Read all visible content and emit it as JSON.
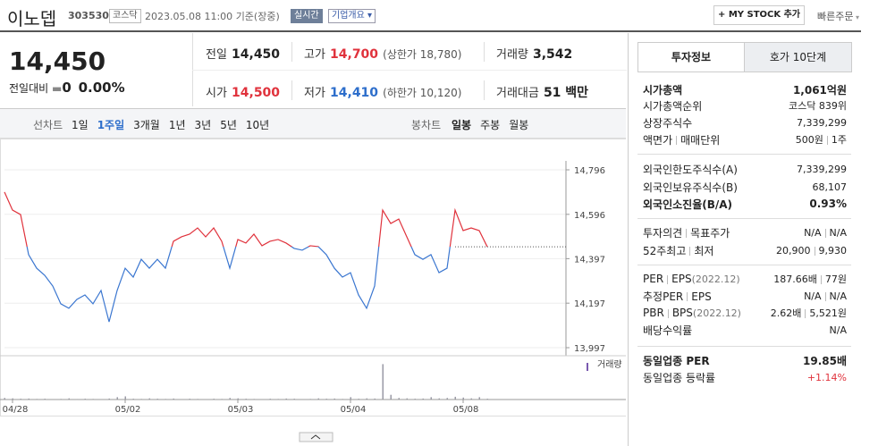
{
  "header": {
    "name": "이노뎁",
    "code": "303530",
    "market": "코스닥",
    "datetime": "2023.05.08 11:00",
    "status": "기준(장중)",
    "badge_live": "실시간",
    "badge_info": "기업개요",
    "mystock": "+ MY STOCK 추가",
    "quick_order": "빠른주문"
  },
  "price": {
    "current": "14,450",
    "change_label": "전일대비",
    "change": "0",
    "rate": "0.00%"
  },
  "summary": {
    "prev_label": "전일",
    "prev": "14,450",
    "high_label": "고가",
    "high": "14,700",
    "upper": "(상한가 18,780)",
    "volume_label": "거래량",
    "volume": "3,542",
    "open_label": "시가",
    "open": "14,500",
    "low_label": "저가",
    "low": "14,410",
    "lower": "(하한가 10,120)",
    "amount_label": "거래대금",
    "amount": "51 백만"
  },
  "tabs": {
    "line_label": "선차트",
    "line": [
      "1일",
      "1주일",
      "3개월",
      "1년",
      "3년",
      "5년",
      "10년"
    ],
    "line_selected": 1,
    "candle_label": "봉차트",
    "candle": [
      "일봉",
      "주봉",
      "월봉"
    ]
  },
  "chart_data": {
    "type": "line",
    "categories": [
      null,
      "04/28",
      null,
      null,
      null,
      null,
      null,
      null,
      null,
      null,
      null,
      null,
      null,
      null,
      null,
      "05/02",
      null,
      null,
      null,
      null,
      null,
      null,
      null,
      null,
      null,
      null,
      null,
      null,
      null,
      "05/03",
      null,
      null,
      null,
      null,
      null,
      null,
      null,
      null,
      null,
      null,
      null,
      null,
      null,
      "05/04",
      null,
      null,
      null,
      null,
      null,
      null,
      null,
      null,
      null,
      null,
      null,
      null,
      null,
      "05/08",
      null,
      null,
      null
    ],
    "series": [
      {
        "values": [
          14696,
          14615,
          14595,
          14415,
          14354,
          14322,
          14274,
          14194,
          14174,
          14214,
          14234,
          14194,
          14254,
          14113,
          14254,
          14354,
          14314,
          14394,
          14354,
          14394,
          14354,
          14475,
          14495,
          14507,
          14535,
          14495,
          14535,
          14475,
          14354,
          14483,
          14467,
          14507,
          14455,
          14475,
          14483,
          14467,
          14443,
          14435,
          14455,
          14451,
          14415,
          14354,
          14314,
          14334,
          14234,
          14174,
          14274,
          14615,
          14555,
          14575,
          14495,
          14415,
          14394,
          14415,
          14334,
          14354,
          14615,
          14523,
          14535,
          14523,
          14450
        ]
      }
    ],
    "baseline": 14450,
    "up_color": "#e0323c",
    "down_color": "#3a76d0",
    "ylim": [
      13997,
      14796
    ],
    "yticks": [
      {
        "value": 13997,
        "label": "13,997"
      },
      {
        "value": 14197,
        "label": "14,197"
      },
      {
        "value": 14397,
        "label": "14,397"
      },
      {
        "value": 14596,
        "label": "14,596"
      },
      {
        "value": 14796,
        "label": "14,796"
      }
    ],
    "grid": true,
    "volume_label": "거래량",
    "volume_color": "#9a9aa6",
    "volume_ylim": [
      0,
      1000
    ],
    "volume": [
      40,
      30,
      20,
      25,
      15,
      20,
      10,
      15,
      30,
      12,
      20,
      15,
      10,
      25,
      60,
      80,
      20,
      15,
      30,
      20,
      15,
      25,
      10,
      20,
      15,
      10,
      20,
      15,
      40,
      30,
      20,
      15,
      10,
      20,
      15,
      25,
      20,
      10,
      15,
      30,
      20,
      25,
      15,
      60,
      20,
      30,
      25,
      900,
      120,
      40,
      30,
      20,
      25,
      60,
      30,
      40,
      70,
      50,
      30,
      60,
      20
    ]
  },
  "side": {
    "tabs": [
      "투자정보",
      "호가 10단계"
    ],
    "groups": [
      [
        {
          "label": [
            "시가총액"
          ],
          "value": [
            "1,061억원"
          ],
          "strong": true
        },
        {
          "label": [
            "시가총액순위"
          ],
          "value": [
            "코스닥 839위"
          ]
        },
        {
          "label": [
            "상장주식수"
          ],
          "value": [
            "7,339,299"
          ]
        },
        {
          "label": [
            "액면가",
            "매매단위"
          ],
          "value": [
            "500원",
            "1주"
          ]
        }
      ],
      [
        {
          "label": [
            "외국인한도주식수(A)"
          ],
          "value": [
            "7,339,299"
          ]
        },
        {
          "label": [
            "외국인보유주식수(B)"
          ],
          "value": [
            "68,107"
          ]
        },
        {
          "label": [
            "외국인소진율(B/A)"
          ],
          "value": [
            "0.93%"
          ],
          "strong": true
        }
      ],
      [
        {
          "label": [
            "투자의견",
            "목표주가"
          ],
          "value": [
            "N/A",
            "N/A"
          ]
        },
        {
          "label": [
            "52주최고",
            "최저"
          ],
          "value": [
            "20,900",
            "9,930"
          ]
        }
      ],
      [
        {
          "label": [
            "PER",
            "EPS",
            "(2022.12)"
          ],
          "value": [
            "187.66배",
            "77원"
          ]
        },
        {
          "label": [
            "추정PER",
            "EPS"
          ],
          "value": [
            "N/A",
            "N/A"
          ]
        },
        {
          "label": [
            "PBR",
            "BPS",
            "(2022.12)"
          ],
          "value": [
            "2.62배",
            "5,521원"
          ]
        },
        {
          "label": [
            "배당수익률"
          ],
          "value": [
            "N/A"
          ]
        }
      ],
      [
        {
          "label": [
            "동일업종 PER"
          ],
          "value": [
            "19.85배"
          ],
          "strong": true
        },
        {
          "label": [
            "동일업종 등락률"
          ],
          "value": [
            "+1.14%"
          ],
          "value_color": "#e0323c"
        }
      ]
    ]
  }
}
